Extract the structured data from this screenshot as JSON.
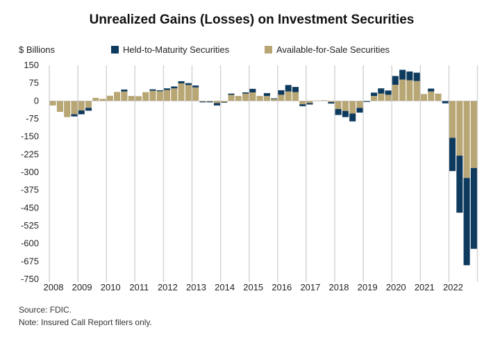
{
  "chart_data": {
    "type": "bar",
    "stacked": true,
    "title": "Unrealized Gains (Losses) on Investment Securities",
    "ylabel": "$ Billions",
    "ylim": [
      -750,
      150
    ],
    "yticks": [
      150,
      75,
      0,
      -75,
      -150,
      -225,
      -300,
      -375,
      -450,
      -525,
      -600,
      -675,
      -750
    ],
    "xtick_labels": [
      "2008",
      "2009",
      "2010",
      "2011",
      "2012",
      "2013",
      "2014",
      "2015",
      "2016",
      "2017",
      "2018",
      "2019",
      "2020",
      "2021",
      "2022"
    ],
    "x_frequency": "quarterly",
    "grid": "vertical at year boundaries",
    "legend_placement": "top",
    "colors": {
      "htm": "#0e3a5e",
      "afs": "#b8a675"
    },
    "series": [
      {
        "name": "Held-to-Maturity Securities",
        "key": "htm",
        "values": [
          0,
          0,
          0,
          -9,
          -16,
          -12,
          0,
          0,
          0,
          0,
          8,
          0,
          0,
          0,
          6,
          4,
          7,
          8,
          9,
          8,
          8,
          -3,
          -3,
          -10,
          -1,
          5,
          0,
          5,
          15,
          0,
          12,
          3,
          19,
          27,
          22,
          -8,
          -6,
          0,
          0,
          -6,
          -25,
          -26,
          -33,
          -20,
          -4,
          14,
          22,
          18,
          37,
          41,
          37,
          35,
          0,
          12,
          0,
          -10,
          -140,
          -240,
          -367,
          -340
        ]
      },
      {
        "name": "Available-for-Sale Securities",
        "key": "afs",
        "values": [
          -19,
          -46,
          -68,
          -56,
          -40,
          -29,
          13,
          9,
          22,
          38,
          40,
          21,
          20,
          37,
          43,
          41,
          46,
          53,
          74,
          67,
          57,
          -3,
          -3,
          -9,
          -5,
          26,
          21,
          31,
          36,
          21,
          21,
          8,
          26,
          40,
          37,
          -14,
          -9,
          2,
          3,
          -5,
          -34,
          -42,
          -53,
          -29,
          0,
          21,
          31,
          26,
          68,
          90,
          87,
          84,
          29,
          40,
          31,
          0,
          -155,
          -230,
          -324,
          -282
        ]
      }
    ]
  },
  "notes": {
    "source": "Source: FDIC.",
    "note": "Note: Insured Call Report filers only."
  }
}
